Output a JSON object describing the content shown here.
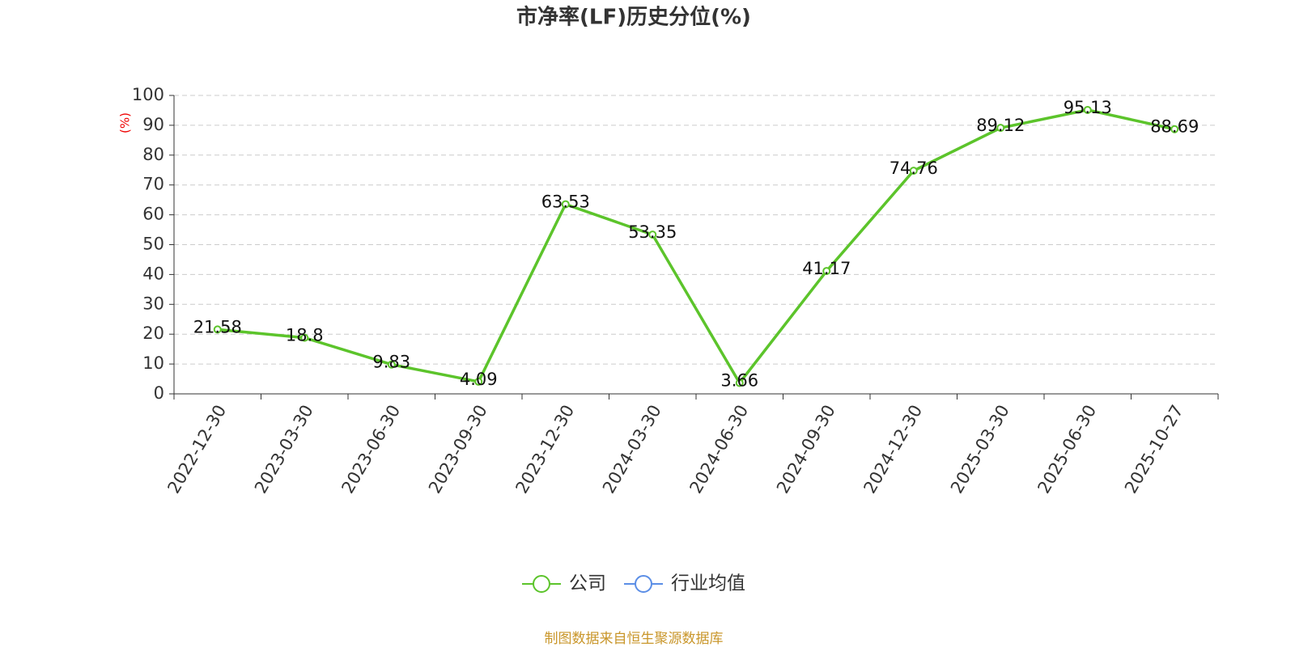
{
  "chart_data": {
    "type": "line",
    "title": "市净率(LF)历史分位(%)",
    "y_label": "(%)",
    "categories": [
      "2022-12-30",
      "2023-03-30",
      "2023-06-30",
      "2023-09-30",
      "2023-12-30",
      "2024-03-30",
      "2024-06-30",
      "2024-09-30",
      "2024-12-30",
      "2025-03-30",
      "2025-06-30",
      "2025-10-27"
    ],
    "series": [
      {
        "name": "公司",
        "color": "#5cc42b",
        "values": [
          21.58,
          18.8,
          9.83,
          4.09,
          63.53,
          53.35,
          3.66,
          41.17,
          74.76,
          89.12,
          95.13,
          88.69
        ]
      },
      {
        "name": "行业均值",
        "color": "#5b8ee6",
        "values": [
          null,
          null,
          null,
          null,
          null,
          null,
          null,
          null,
          null,
          null,
          null,
          null
        ]
      }
    ],
    "ylim": [
      0,
      100
    ],
    "yticks": [
      0,
      10,
      20,
      30,
      40,
      50,
      60,
      70,
      80,
      90,
      100
    ],
    "grid": true,
    "legend_position": "bottom",
    "source": "制图数据来自恒生聚源数据库"
  }
}
